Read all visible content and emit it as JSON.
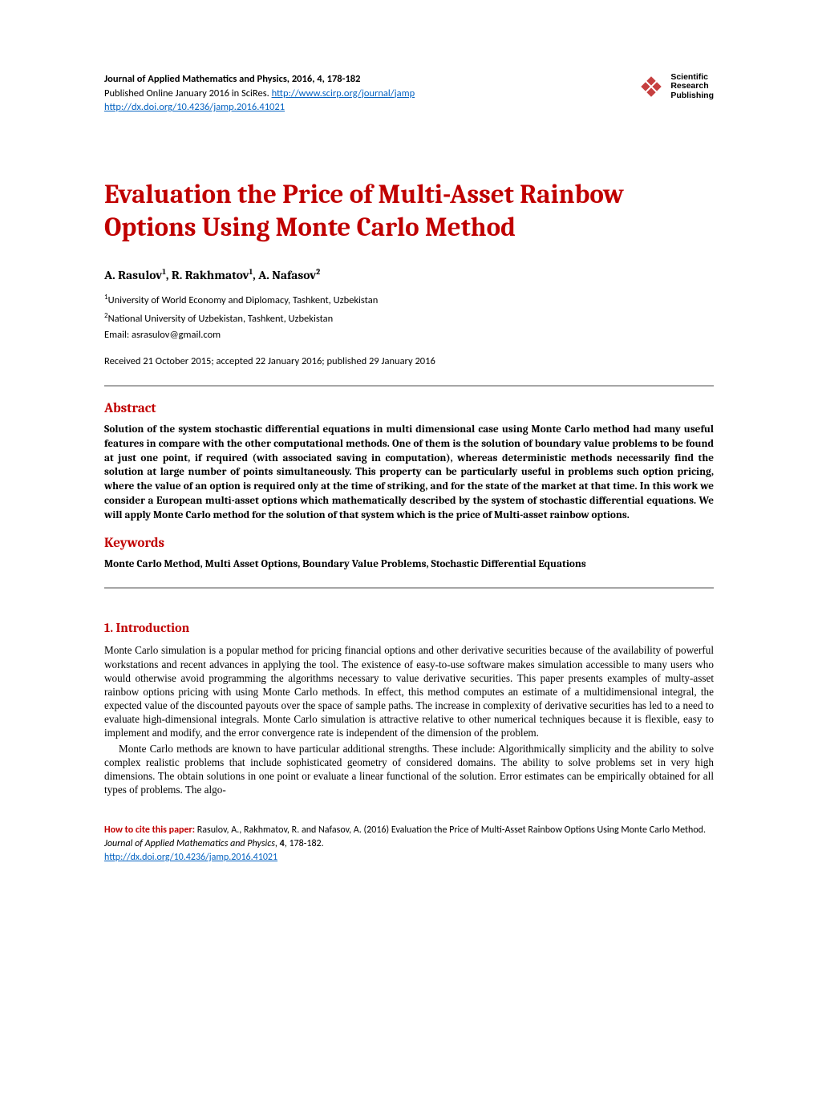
{
  "header": {
    "journal_line": "Journal of Applied Mathematics and Physics, 2016, 4, 178-182",
    "published_prefix": "Published Online January 2016 in SciRes. ",
    "journal_url": "http://www.scirp.org/journal/jamp",
    "doi_url": "http://dx.doi.org/10.4236/jamp.2016.41021",
    "publisher_name_l1": "Scientific",
    "publisher_name_l2": "Research",
    "publisher_name_l3": "Publishing",
    "logo_fill": "#c63f3f"
  },
  "title": "Evaluation the Price of Multi-Asset Rainbow Options Using Monte Carlo Method",
  "authors_html": "A. Rasulov<sup>1</sup>, R. Rakhmatov<sup>1</sup>, A. Nafasov<sup>2</sup>",
  "affiliations": {
    "a1": "University of World Economy and Diplomacy, Tashkent, Uzbekistan",
    "a2": "National University of Uzbekistan, Tashkent, Uzbekistan"
  },
  "email_label": "Email: ",
  "email_value": "asrasulov@gmail.com",
  "dates": "Received 21 October 2015; accepted 22 January 2016; published 29 January 2016",
  "abstract_head": "Abstract",
  "abstract_body": "Solution of the system stochastic differential equations in multi dimensional case using Monte Carlo method had many useful features in compare with the other computational methods. One of them is the solution of boundary value problems to be found at just one point, if required (with associated saving in computation), whereas deterministic methods necessarily find the solution at large number of points simultaneously. This property can be particularly useful in problems such option pricing, where the value of an option is required only at the time of striking, and for the state of the market at that time. In this work we consider a European multi-asset options which mathematically described by the system of stochastic differential equations. We will apply Monte Carlo method for the solution of that system which is the price of Multi-asset rainbow options.",
  "keywords_head": "Keywords",
  "keywords_body": "Monte Carlo Method, Multi Asset Options, Boundary Value Problems, Stochastic Differential Equations",
  "intro_head": "1. Introduction",
  "intro_p1": "Monte Carlo simulation is a popular method for pricing financial options and other derivative securities because of the availability of powerful workstations and recent advances in applying the tool. The existence of easy-to-use software makes simulation accessible to many users who would otherwise avoid programming the algorithms necessary to value derivative securities. This paper presents examples of multy-asset rainbow options pricing with using Monte Carlo methods. In effect, this method computes an estimate of a multidimensional integral, the expected value of the discounted payouts over the space of sample paths. The increase in complexity of derivative securities has led to a need to evaluate high-dimensional integrals. Monte Carlo simulation is attractive relative to other numerical techniques because it is flexible, easy to implement and modify, and the error convergence rate is independent of the dimension of the problem.",
  "intro_p2": "Monte Carlo methods are known to have particular additional strengths. These include: Algorithmically simplicity and the ability to solve complex realistic problems that include sophisticated geometry of considered domains. The ability to solve problems set in very high dimensions. The obtain solutions in one point or evaluate a linear functional of the solution. Error estimates can be empirically obtained for all types of problems. The algo-",
  "citation": {
    "label": "How to cite this paper: ",
    "text_before": "Rasulov, A., Rakhmatov, R. and Nafasov, A. (2016) Evaluation the Price of Multi-Asset Rainbow Options Using Monte Carlo Method. ",
    "journal": "Journal of Applied Mathematics and Physics",
    "text_after": ", ",
    "volume": "4",
    "pages": ", 178-182.",
    "doi_url": "http://dx.doi.org/10.4236/jamp.2016.41021"
  },
  "colors": {
    "accent": "#c00000",
    "link": "#0563c1",
    "rule": "#a6a6a6",
    "text": "#000000",
    "bg": "#ffffff"
  }
}
